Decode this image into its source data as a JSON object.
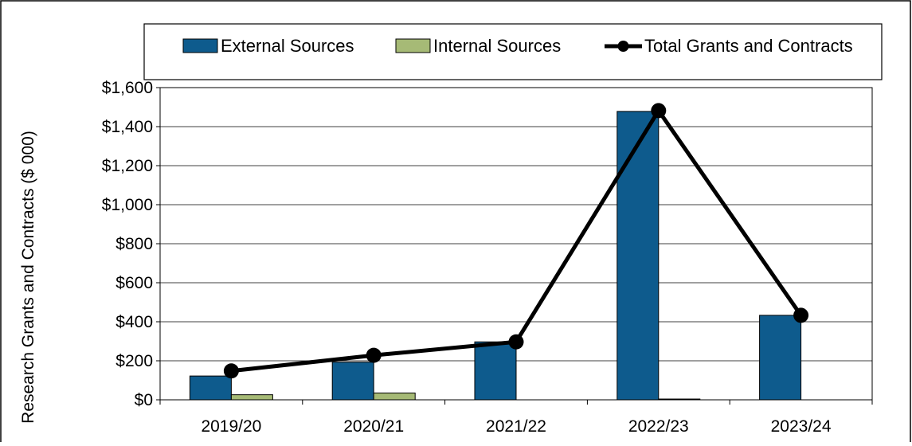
{
  "chart_data": {
    "type": "bar",
    "categories": [
      "2019/20",
      "2020/21",
      "2021/22",
      "2022/23",
      "2023/24"
    ],
    "series": [
      {
        "name": "External Sources",
        "kind": "bar",
        "color": "#0e5b8d",
        "values": [
          122,
          193,
          297,
          1478,
          433
        ]
      },
      {
        "name": "Internal Sources",
        "kind": "bar",
        "color": "#a6ba76",
        "values": [
          26,
          35,
          0,
          4,
          0
        ]
      },
      {
        "name": "Total Grants and Contracts",
        "kind": "line",
        "color": "#000000",
        "values": [
          148,
          228,
          297,
          1482,
          433
        ]
      }
    ],
    "title": "",
    "xlabel": "",
    "ylabel": "Research Grants and Contracts ($ 000)",
    "ylim": [
      0,
      1600
    ],
    "yticks": [
      0,
      200,
      400,
      600,
      800,
      1000,
      1200,
      1400,
      1600
    ],
    "ytick_labels": [
      "$0",
      "$200",
      "$400",
      "$600",
      "$800",
      "$1,000",
      "$1,200",
      "$1,400",
      "$1,600"
    ],
    "grid": true,
    "legend_position": "top"
  }
}
